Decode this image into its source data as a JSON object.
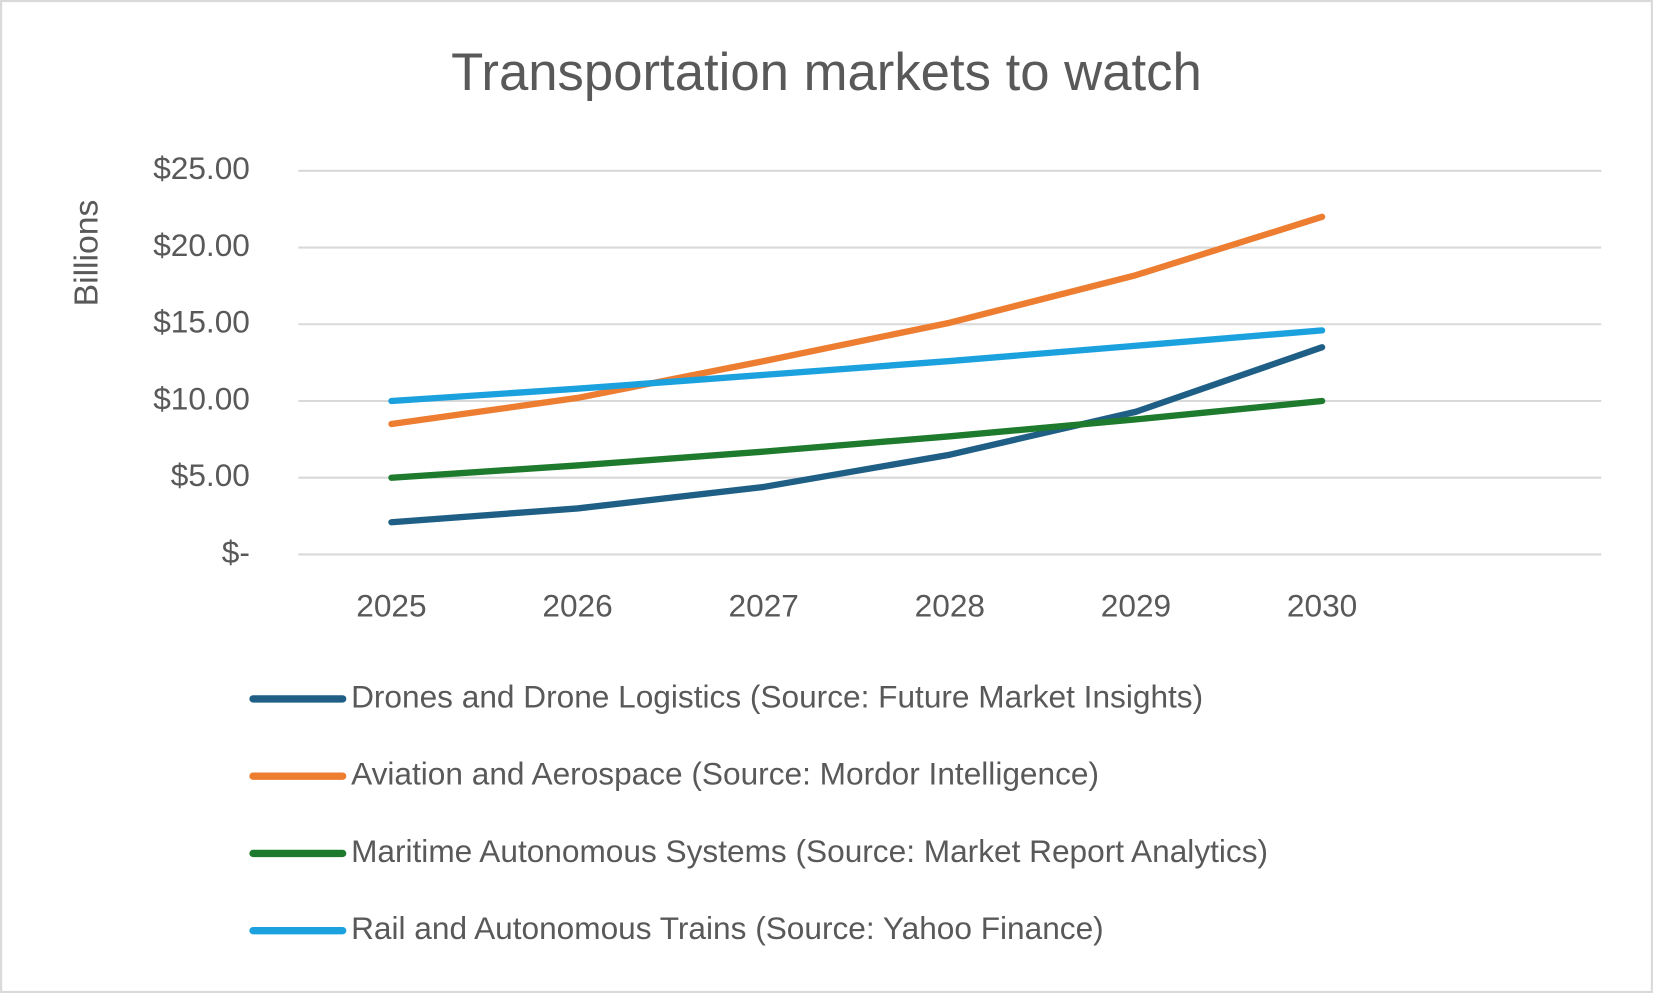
{
  "chart_data": {
    "type": "line",
    "title": "Transportation markets to watch",
    "y_label": "Billions",
    "categories": [
      "2025",
      "2026",
      "2027",
      "2028",
      "2029",
      "2030",
      null
    ],
    "series": [
      {
        "name": "Drones and Drone Logistics (Source: Future Market Insights)",
        "color": "#1f5f86",
        "values": [
          2.1,
          3.0,
          4.4,
          6.5,
          9.3,
          13.5,
          null
        ]
      },
      {
        "name": "Aviation and Aerospace (Source: Mordor Intelligence)",
        "color": "#ed7d31",
        "values": [
          8.5,
          10.2,
          12.6,
          15.1,
          18.2,
          22.0,
          null
        ]
      },
      {
        "name": "Maritime Autonomous Systems (Source: Market Report Analytics)",
        "color": "#1e7a2c",
        "values": [
          5.0,
          5.8,
          6.7,
          7.7,
          8.8,
          10.0,
          null
        ]
      },
      {
        "name": "Rail and Autonomous Trains (Source: Yahoo Finance)",
        "color": "#1ba1de",
        "values": [
          10.0,
          10.8,
          11.7,
          12.6,
          13.6,
          14.6,
          null
        ]
      }
    ],
    "ylim": [
      0,
      25
    ],
    "yticks": [
      {
        "value": 0,
        "label": "$-"
      },
      {
        "value": 5,
        "label": "$5.00"
      },
      {
        "value": 10,
        "label": "$10.00"
      },
      {
        "value": 15,
        "label": "$15.00"
      },
      {
        "value": 20,
        "label": "$20.00"
      },
      {
        "value": 25,
        "label": "$25.00"
      }
    ],
    "grid": true,
    "legend": "bottom"
  }
}
